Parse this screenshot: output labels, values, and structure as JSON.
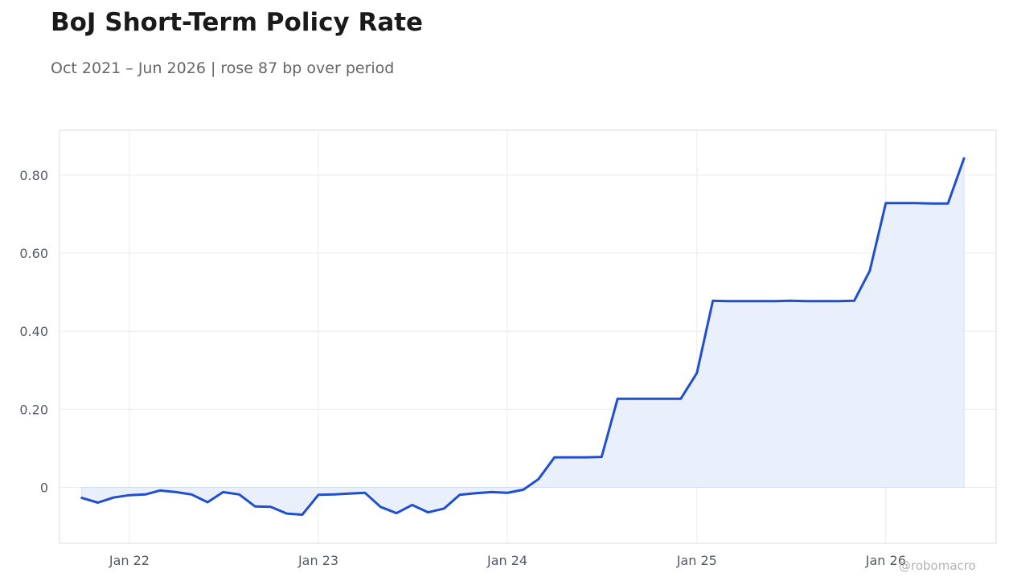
{
  "title": "BoJ Short-Term Policy Rate",
  "subtitle": "Oct 2021 – Jun 2026 | rose 87 bp over period",
  "watermark": "@robomacro",
  "colors": {
    "line": "#1f4fcc",
    "fill": "#eaf0fb",
    "grid": "#ececec",
    "frame": "#dddddd"
  },
  "chart_data": {
    "type": "area",
    "title": "BoJ Short-Term Policy Rate",
    "subtitle": "Oct 2021 – Jun 2026 | rose 87 bp over period",
    "xlabel": "",
    "ylabel": "",
    "x_ticks": [
      "Jan 22",
      "Jan 23",
      "Jan 24",
      "Jan 25",
      "Jan 26"
    ],
    "y_ticks": [
      "0",
      "0.20",
      "0.40",
      "0.60",
      "0.80"
    ],
    "ylim": [
      -0.143,
      0.915
    ],
    "xlim": [
      "2021-08-19",
      "2026-08-02"
    ],
    "grid": true,
    "legend": "none",
    "series": [
      {
        "x": [
          "2021-10",
          "2021-11",
          "2021-12",
          "2022-01",
          "2022-02",
          "2022-03",
          "2022-04",
          "2022-05",
          "2022-06",
          "2022-07",
          "2022-08",
          "2022-09",
          "2022-10",
          "2022-11",
          "2022-12",
          "2023-01",
          "2023-02",
          "2023-03",
          "2023-04",
          "2023-05",
          "2023-06",
          "2023-07",
          "2023-08",
          "2023-09",
          "2023-10",
          "2023-11",
          "2023-12",
          "2024-01",
          "2024-02",
          "2024-03",
          "2024-04",
          "2024-05",
          "2024-06",
          "2024-07",
          "2024-08",
          "2024-09",
          "2024-10",
          "2024-11",
          "2024-12",
          "2025-01",
          "2025-02",
          "2025-03",
          "2025-04",
          "2025-05",
          "2025-06",
          "2025-07",
          "2025-08",
          "2025-09",
          "2025-10",
          "2025-11",
          "2025-12",
          "2026-01",
          "2026-02",
          "2026-03",
          "2026-04",
          "2026-05",
          "2026-06"
        ],
        "values": [
          -0.027,
          -0.039,
          -0.026,
          -0.02,
          -0.018,
          -0.008,
          -0.012,
          -0.018,
          -0.038,
          -0.012,
          -0.018,
          -0.049,
          -0.05,
          -0.067,
          -0.07,
          -0.019,
          -0.018,
          -0.016,
          -0.014,
          -0.05,
          -0.066,
          -0.045,
          -0.064,
          -0.054,
          -0.019,
          -0.015,
          -0.012,
          -0.014,
          -0.006,
          0.021,
          0.077,
          0.077,
          0.077,
          0.078,
          0.227,
          0.227,
          0.227,
          0.227,
          0.227,
          0.293,
          0.478,
          0.477,
          0.477,
          0.477,
          0.477,
          0.478,
          0.477,
          0.477,
          0.477,
          0.478,
          0.555,
          0.728,
          0.728,
          0.728,
          0.727,
          0.727,
          0.843
        ]
      }
    ]
  }
}
